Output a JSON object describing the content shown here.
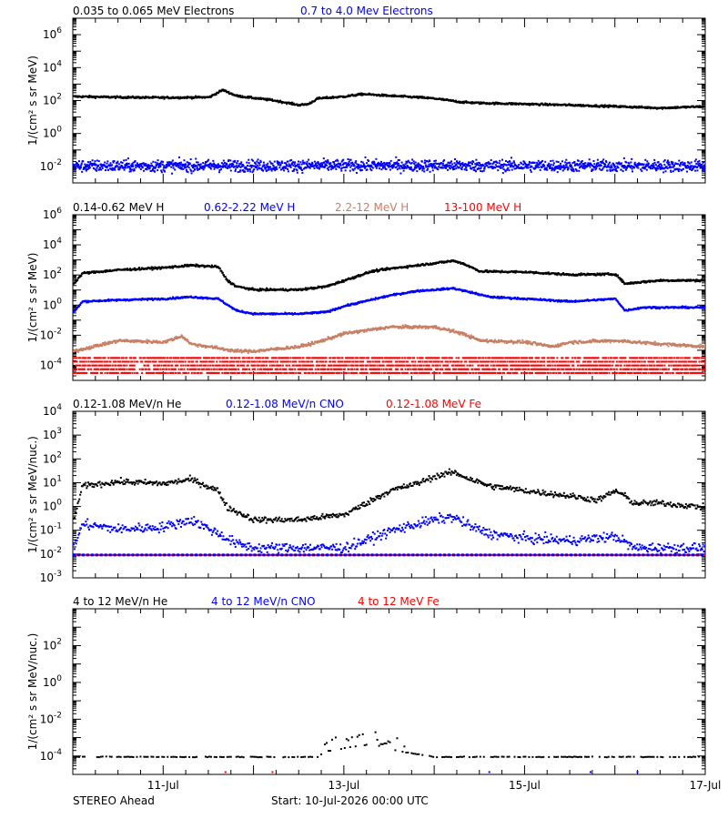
{
  "footer": {
    "spacecraft": "STEREO Ahead",
    "start": "Start: 10-Jul-2026 00:00 UTC"
  },
  "colors": {
    "black": "#000000",
    "blue": "#0000ff",
    "tan": "#c87f64",
    "red": "#ff0000"
  },
  "chart_data": [
    {
      "type": "scatter",
      "scale": "log",
      "ylabel": "1/(cm² s sr MeV)",
      "ylim": [
        0.001,
        10000000
      ],
      "xlim": [
        0,
        7
      ],
      "yticks": [
        {
          "exp": 6,
          "label": "6"
        },
        {
          "exp": 4,
          "label": "4"
        },
        {
          "exp": 2,
          "label": "2"
        },
        {
          "exp": 0,
          "label": "0"
        },
        {
          "exp": -2,
          "label": "-2"
        }
      ],
      "series": [
        {
          "name": "0.035 to 0.065 MeV Electrons",
          "color": "#000000",
          "style": "dense",
          "noise": 0.06,
          "x": [
            0,
            0.5,
            1.0,
            1.5,
            1.65,
            1.8,
            2.0,
            2.2,
            2.5,
            2.6,
            2.7,
            3.0,
            3.2,
            3.5,
            3.8,
            4.0,
            4.3,
            4.5,
            5.0,
            5.5,
            6.0,
            6.5,
            7.0
          ],
          "y": [
            200,
            180,
            170,
            180,
            500,
            220,
            160,
            120,
            60,
            70,
            150,
            200,
            280,
            220,
            180,
            150,
            90,
            80,
            70,
            60,
            50,
            40,
            50
          ]
        },
        {
          "name": "0.7 to 4.0 Mev Electrons",
          "color": "#0000ff",
          "style": "scatter",
          "noise": 0.35,
          "x": [
            0,
            3.5,
            7.0
          ],
          "y": [
            0.012,
            0.013,
            0.012
          ]
        }
      ]
    },
    {
      "type": "scatter",
      "scale": "log",
      "ylabel": "1/(cm² s sr MeV)",
      "ylim": [
        1e-05,
        1000000
      ],
      "xlim": [
        0,
        7
      ],
      "yticks": [
        {
          "exp": 6,
          "label": "6"
        },
        {
          "exp": 4,
          "label": "4"
        },
        {
          "exp": 2,
          "label": "2"
        },
        {
          "exp": 0,
          "label": "0"
        },
        {
          "exp": -2,
          "label": "-2"
        },
        {
          "exp": -4,
          "label": "-4"
        }
      ],
      "series": [
        {
          "name": "0.14-0.62 MeV H",
          "color": "#000000",
          "style": "dense",
          "noise": 0.07,
          "x": [
            0,
            0.1,
            0.5,
            1.0,
            1.3,
            1.6,
            1.7,
            1.8,
            2.0,
            2.3,
            2.5,
            2.8,
            3.0,
            3.3,
            3.5,
            3.8,
            4.0,
            4.2,
            4.3,
            4.5,
            5.0,
            5.5,
            6.0,
            6.1,
            6.3,
            6.5,
            7.0
          ],
          "y": [
            30,
            150,
            250,
            350,
            500,
            400,
            50,
            20,
            12,
            12,
            12,
            20,
            50,
            200,
            300,
            500,
            700,
            1000,
            700,
            200,
            180,
            120,
            130,
            30,
            40,
            50,
            50
          ]
        },
        {
          "name": "0.62-2.22 MeV H",
          "color": "#0000ff",
          "style": "dense",
          "noise": 0.06,
          "x": [
            0,
            0.1,
            0.5,
            1.0,
            1.3,
            1.6,
            1.8,
            2.0,
            2.5,
            2.8,
            3.0,
            3.5,
            3.8,
            4.0,
            4.2,
            4.4,
            4.6,
            5.0,
            5.5,
            6.0,
            6.1,
            6.3,
            6.5,
            7.0
          ],
          "y": [
            0.4,
            2,
            2.5,
            3,
            4,
            3,
            0.5,
            0.3,
            0.3,
            0.4,
            1,
            5,
            10,
            12,
            15,
            8,
            4,
            3,
            2,
            3,
            0.5,
            0.8,
            0.8,
            0.8
          ]
        },
        {
          "name": "2.2-12 MeV H",
          "color": "#c87f64",
          "style": "dense",
          "noise": 0.1,
          "x": [
            0,
            0.5,
            1.0,
            1.2,
            1.3,
            1.5,
            1.8,
            2.0,
            2.5,
            2.7,
            3.0,
            3.5,
            4.0,
            4.3,
            4.5,
            5.0,
            5.3,
            5.5,
            6.0,
            6.5,
            7.0
          ],
          "y": [
            0.001,
            0.005,
            0.004,
            0.01,
            0.003,
            0.002,
            0.001,
            0.001,
            0.002,
            0.004,
            0.015,
            0.04,
            0.04,
            0.015,
            0.005,
            0.004,
            0.002,
            0.004,
            0.005,
            0.003,
            0.002
          ]
        },
        {
          "name": "13-100 MeV H",
          "color": "#ff0000",
          "style": "bands",
          "noise": 0.0,
          "x": [
            0,
            7.0
          ],
          "y": [
            0.0001,
            0.0001
          ]
        }
      ]
    },
    {
      "type": "scatter",
      "scale": "log",
      "ylabel": "1/(cm² s sr MeV/nuc.)",
      "ylim": [
        0.001,
        10000
      ],
      "xlim": [
        0,
        7
      ],
      "yticks": [
        {
          "exp": 4,
          "label": "4"
        },
        {
          "exp": 3,
          "label": "3"
        },
        {
          "exp": 2,
          "label": "2"
        },
        {
          "exp": 1,
          "label": "1"
        },
        {
          "exp": 0,
          "label": "0"
        },
        {
          "exp": -1,
          "label": "-1"
        },
        {
          "exp": -2,
          "label": "-2"
        },
        {
          "exp": -3,
          "label": "-3"
        }
      ],
      "series": [
        {
          "name": "0.12-1.08 MeV/n He",
          "color": "#000000",
          "style": "scatter",
          "noise": 0.12,
          "x": [
            0,
            0.1,
            0.5,
            1.0,
            1.3,
            1.6,
            1.7,
            2.0,
            2.5,
            3.0,
            3.3,
            3.5,
            3.8,
            4.0,
            4.2,
            4.4,
            4.6,
            5.0,
            5.5,
            5.8,
            6.0,
            6.1,
            6.2,
            6.5,
            7.0
          ],
          "y": [
            0.3,
            8,
            12,
            10,
            15,
            5,
            1,
            0.3,
            0.3,
            0.5,
            2,
            5,
            10,
            20,
            30,
            15,
            8,
            5,
            3,
            2,
            5,
            3,
            1.5,
            1.5,
            1
          ]
        },
        {
          "name": "0.12-1.08 MeV/n CNO",
          "color": "#0000ff",
          "style": "scatter",
          "noise": 0.2,
          "x": [
            0,
            0.1,
            0.5,
            1.0,
            1.3,
            1.6,
            1.8,
            2.0,
            2.5,
            3.0,
            3.3,
            3.5,
            3.8,
            4.0,
            4.2,
            4.4,
            4.6,
            5.0,
            5.5,
            6.0,
            6.2,
            7.0
          ],
          "y": [
            0.02,
            0.2,
            0.12,
            0.15,
            0.3,
            0.08,
            0.03,
            0.02,
            0.02,
            0.02,
            0.05,
            0.1,
            0.2,
            0.3,
            0.4,
            0.15,
            0.08,
            0.05,
            0.04,
            0.06,
            0.02,
            0.02
          ]
        },
        {
          "name": "0.12-1.08 MeV Fe",
          "color": "#ff0000",
          "style": "bands",
          "noise": 0.0,
          "x": [
            0,
            7.0
          ],
          "y": [
            0.01,
            0.01
          ]
        }
      ]
    },
    {
      "type": "scatter",
      "scale": "log",
      "ylabel": "1/(cm² s sr MeV/nuc.)",
      "ylim": [
        1e-05,
        10000
      ],
      "xlim": [
        0,
        7
      ],
      "xticks": [
        {
          "x": 1,
          "label": "11-Jul"
        },
        {
          "x": 3,
          "label": "13-Jul"
        },
        {
          "x": 5,
          "label": "15-Jul"
        },
        {
          "x": 7,
          "label": "17-Jul"
        }
      ],
      "yticks": [
        {
          "exp": 2,
          "label": "2"
        },
        {
          "exp": 0,
          "label": "0"
        },
        {
          "exp": -2,
          "label": "-2"
        },
        {
          "exp": -4,
          "label": "-4"
        }
      ],
      "series": [
        {
          "name": "4 to 12 MeV/n He",
          "color": "#000000",
          "style": "sparse",
          "noise": 0.02,
          "x": [
            0,
            2.7,
            2.8,
            3.0,
            3.3,
            3.5,
            3.6,
            4.0,
            7.0
          ],
          "y": [
            0.0001,
            0.0001,
            0.0002,
            0.0003,
            0.0005,
            0.0003,
            0.0002,
            0.0001,
            0.0001
          ]
        },
        {
          "name": "4 to 12 MeV/n CNO",
          "color": "#0000ff",
          "style": "sparse",
          "noise": 0.0,
          "x": [
            0,
            7.0
          ],
          "y": [
            1.5e-05,
            1.5e-05
          ]
        },
        {
          "name": "4 to 12 MeV Fe",
          "color": "#ff0000",
          "style": "sparse",
          "noise": 0.0,
          "x": [
            0,
            7.0
          ],
          "y": [
            1.5e-05,
            1.5e-05
          ]
        }
      ]
    }
  ]
}
